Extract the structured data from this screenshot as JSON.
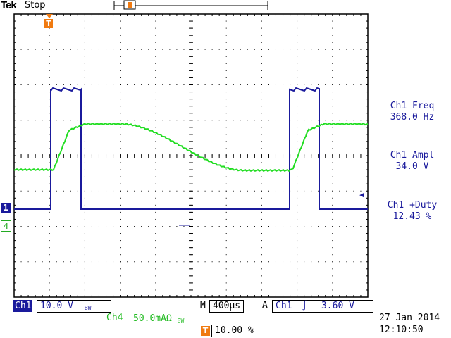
{
  "header": {
    "brand": "Tek",
    "acq_state": "Stop"
  },
  "markers": {
    "trigger_pos_icon": "T",
    "channel1_marker": "1",
    "channel4_marker": "4",
    "trigger_level_arrow": "◀"
  },
  "measurements": [
    {
      "label": "Ch1 Freq",
      "value": "368.0 Hz"
    },
    {
      "label": "Ch1 Ampl",
      "value": "34.0 V"
    },
    {
      "label": "Ch1 +Duty",
      "value": "12.43 %"
    }
  ],
  "status": {
    "ch1_tag": "Ch1",
    "ch1_scale": "10.0 V",
    "ch1_bw": "BW",
    "time_tag": "M",
    "time_scale": "400µs",
    "trig_tag": "A",
    "trig_source": "Ch1",
    "trig_slope": "∫",
    "trig_level": "3.60 V",
    "ch4_tag": "Ch4",
    "ch4_scale": "50.0mAΩ",
    "ch4_bw": "BW",
    "trig_pos_icon": "T",
    "trig_pos": "10.00 %",
    "date": "27 Jan  2014",
    "time": "12:10:50"
  },
  "colors": {
    "ch1": "#1a1a9c",
    "ch4": "#22dd22",
    "trigger": "#f07a10",
    "graticule": "#000000"
  }
}
